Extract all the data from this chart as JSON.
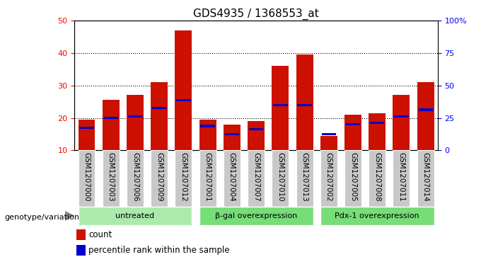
{
  "title": "GDS4935 / 1368553_at",
  "samples": [
    "GSM1207000",
    "GSM1207003",
    "GSM1207006",
    "GSM1207009",
    "GSM1207012",
    "GSM1207001",
    "GSM1207004",
    "GSM1207007",
    "GSM1207010",
    "GSM1207013",
    "GSM1207002",
    "GSM1207005",
    "GSM1207008",
    "GSM1207011",
    "GSM1207014"
  ],
  "counts": [
    19.5,
    25.5,
    27.0,
    31.0,
    47.0,
    19.5,
    18.0,
    19.0,
    36.0,
    39.5,
    14.5,
    21.0,
    21.5,
    27.0,
    31.0
  ],
  "percentile_ranks": [
    17.0,
    20.0,
    20.5,
    23.0,
    25.5,
    17.5,
    15.0,
    16.5,
    24.0,
    24.0,
    15.0,
    18.0,
    18.5,
    20.5,
    22.5
  ],
  "groups": [
    {
      "label": "untreated",
      "indices": [
        0,
        1,
        2,
        3,
        4
      ]
    },
    {
      "label": "β-gal overexpression",
      "indices": [
        5,
        6,
        7,
        8,
        9
      ]
    },
    {
      "label": "Pdx-1 overexpression",
      "indices": [
        10,
        11,
        12,
        13,
        14
      ]
    }
  ],
  "group_colors": [
    "#AAEAAA",
    "#77DD77",
    "#77DD77"
  ],
  "bar_color": "#CC1100",
  "blue_color": "#0000CC",
  "sample_box_color": "#C8C8C8",
  "plot_bg": "#FFFFFF",
  "ymin": 10,
  "ymax": 50,
  "yticks_left": [
    10,
    20,
    30,
    40,
    50
  ],
  "yticks_right": [
    0,
    25,
    50,
    75,
    100
  ],
  "xlabel": "genotype/variation",
  "legend_count": "count",
  "legend_pct": "percentile rank within the sample",
  "title_fontsize": 11,
  "label_fontsize": 7.5,
  "tick_fontsize": 8,
  "bar_width": 0.7
}
